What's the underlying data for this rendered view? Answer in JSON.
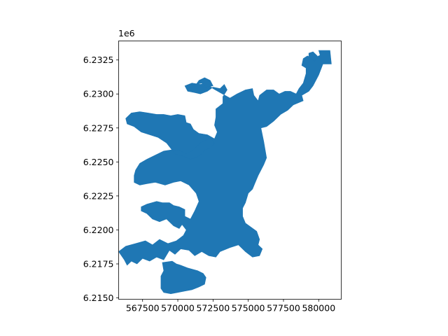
{
  "chart_data": {
    "type": "map",
    "offset_text": "1e6",
    "xlim": [
      565800,
      581600
    ],
    "ylim": [
      6214900,
      6233900
    ],
    "x_ticks": [
      567500,
      570000,
      572500,
      575000,
      577500,
      580000
    ],
    "x_tick_labels": [
      "567500",
      "570000",
      "572500",
      "575000",
      "577500",
      "580000"
    ],
    "y_ticks": [
      6215000,
      6217500,
      6220000,
      6222500,
      6225000,
      6227500,
      6230000,
      6232500
    ],
    "y_tick_labels": [
      "6.2150",
      "6.2175",
      "6.2200",
      "6.2225",
      "6.2250",
      "6.2275",
      "6.2300",
      "6.2325"
    ],
    "fill_color": "#1f77b4",
    "grid": false,
    "polygons": [
      {
        "name": "main-landmass",
        "coords": [
          [
            579200,
            6232800
          ],
          [
            579600,
            6232600
          ],
          [
            580100,
            6232850
          ],
          [
            580000,
            6233200
          ],
          [
            580800,
            6233200
          ],
          [
            580900,
            6232200
          ],
          [
            580300,
            6232200
          ],
          [
            580000,
            6231400
          ],
          [
            579600,
            6230600
          ],
          [
            579300,
            6230200
          ],
          [
            578800,
            6229900
          ],
          [
            578900,
            6229500
          ],
          [
            578200,
            6229200
          ],
          [
            577800,
            6228800
          ],
          [
            577300,
            6228500
          ],
          [
            576800,
            6228000
          ],
          [
            576300,
            6227600
          ],
          [
            575900,
            6227500
          ],
          [
            576000,
            6227000
          ],
          [
            576100,
            6226500
          ],
          [
            576200,
            6225900
          ],
          [
            576300,
            6225300
          ],
          [
            576100,
            6224800
          ],
          [
            575900,
            6224400
          ],
          [
            575700,
            6224000
          ],
          [
            575500,
            6223500
          ],
          [
            575300,
            6223000
          ],
          [
            575000,
            6222700
          ],
          [
            574800,
            6222000
          ],
          [
            574600,
            6221600
          ],
          [
            574600,
            6221000
          ],
          [
            574800,
            6220500
          ],
          [
            575200,
            6220200
          ],
          [
            575600,
            6219900
          ],
          [
            575800,
            6219300
          ],
          [
            575700,
            6218900
          ],
          [
            576000,
            6218600
          ],
          [
            575800,
            6218100
          ],
          [
            575300,
            6218000
          ],
          [
            574800,
            6218400
          ],
          [
            574300,
            6218900
          ],
          [
            573700,
            6218700
          ],
          [
            573000,
            6218400
          ],
          [
            572700,
            6218000
          ],
          [
            572200,
            6218100
          ],
          [
            571700,
            6218400
          ],
          [
            571200,
            6218100
          ],
          [
            570800,
            6218500
          ],
          [
            570200,
            6218600
          ],
          [
            569800,
            6218200
          ],
          [
            569400,
            6218500
          ],
          [
            569000,
            6217800
          ],
          [
            568500,
            6218000
          ],
          [
            568000,
            6217700
          ],
          [
            567500,
            6217900
          ],
          [
            567100,
            6217500
          ],
          [
            566700,
            6217700
          ],
          [
            566400,
            6217400
          ],
          [
            566200,
            6217800
          ],
          [
            565800,
            6218400
          ],
          [
            566300,
            6218800
          ],
          [
            567000,
            6219000
          ],
          [
            567700,
            6219200
          ],
          [
            568200,
            6218900
          ],
          [
            568700,
            6219300
          ],
          [
            569300,
            6219000
          ],
          [
            569900,
            6219200
          ],
          [
            570400,
            6219600
          ],
          [
            570600,
            6220000
          ],
          [
            570300,
            6220400
          ],
          [
            570100,
            6220100
          ],
          [
            569700,
            6220300
          ],
          [
            569200,
            6220800
          ],
          [
            568700,
            6220600
          ],
          [
            568200,
            6220800
          ],
          [
            567800,
            6221200
          ],
          [
            567400,
            6221400
          ],
          [
            567400,
            6221700
          ],
          [
            567800,
            6221900
          ],
          [
            568500,
            6222100
          ],
          [
            568900,
            6222000
          ],
          [
            569400,
            6222000
          ],
          [
            569700,
            6221800
          ],
          [
            570100,
            6221700
          ],
          [
            570500,
            6221500
          ],
          [
            570500,
            6221000
          ],
          [
            570900,
            6220800
          ],
          [
            571200,
            6221400
          ],
          [
            571500,
            6222100
          ],
          [
            571300,
            6222700
          ],
          [
            570800,
            6223300
          ],
          [
            570200,
            6223600
          ],
          [
            569700,
            6223500
          ],
          [
            569100,
            6223300
          ],
          [
            568400,
            6223500
          ],
          [
            567800,
            6223400
          ],
          [
            567300,
            6223300
          ],
          [
            566900,
            6223500
          ],
          [
            566900,
            6224000
          ],
          [
            567000,
            6224400
          ],
          [
            567300,
            6224900
          ],
          [
            567800,
            6225200
          ],
          [
            568400,
            6225500
          ],
          [
            569000,
            6225800
          ],
          [
            569600,
            6225900
          ],
          [
            570200,
            6225800
          ],
          [
            570600,
            6225600
          ],
          [
            571000,
            6225800
          ],
          [
            571300,
            6226100
          ],
          [
            571600,
            6226400
          ],
          [
            572000,
            6226600
          ],
          [
            572300,
            6226800
          ],
          [
            572600,
            6226400
          ],
          [
            572300,
            6226000
          ],
          [
            571900,
            6225900
          ],
          [
            571800,
            6225700
          ],
          [
            571300,
            6225300
          ],
          [
            570900,
            6225200
          ],
          [
            570400,
            6225400
          ],
          [
            569800,
            6225600
          ],
          [
            569200,
            6226400
          ],
          [
            568600,
            6226800
          ],
          [
            568000,
            6227000
          ],
          [
            567400,
            6227200
          ],
          [
            566900,
            6227600
          ],
          [
            566400,
            6227800
          ],
          [
            566300,
            6228200
          ],
          [
            566700,
            6228600
          ],
          [
            567300,
            6228700
          ],
          [
            567900,
            6228600
          ],
          [
            568500,
            6228500
          ],
          [
            569000,
            6228500
          ],
          [
            569500,
            6228400
          ],
          [
            570000,
            6228500
          ],
          [
            570500,
            6228400
          ],
          [
            570600,
            6227900
          ],
          [
            570900,
            6227800
          ],
          [
            571100,
            6227400
          ],
          [
            571500,
            6227100
          ],
          [
            572100,
            6227000
          ],
          [
            572600,
            6226700
          ],
          [
            572800,
            6227200
          ],
          [
            572600,
            6227700
          ],
          [
            572700,
            6228300
          ],
          [
            572700,
            6228900
          ],
          [
            573200,
            6229300
          ],
          [
            573200,
            6229800
          ],
          [
            573500,
            6230300
          ],
          [
            573300,
            6230700
          ],
          [
            573000,
            6230400
          ],
          [
            572500,
            6230500
          ],
          [
            572100,
            6230200
          ],
          [
            571600,
            6230000
          ],
          [
            571200,
            6230100
          ],
          [
            570700,
            6230200
          ],
          [
            570500,
            6230600
          ],
          [
            571000,
            6230800
          ],
          [
            571600,
            6230700
          ],
          [
            572000,
            6230800
          ],
          [
            572500,
            6230400
          ],
          [
            573000,
            6230100
          ],
          [
            573700,
            6229700
          ],
          [
            574200,
            6230000
          ],
          [
            574800,
            6230300
          ],
          [
            575300,
            6230400
          ],
          [
            575400,
            6229900
          ],
          [
            575700,
            6229500
          ],
          [
            575800,
            6229900
          ],
          [
            576300,
            6230300
          ],
          [
            576800,
            6230300
          ],
          [
            577200,
            6230000
          ],
          [
            577600,
            6230200
          ],
          [
            578000,
            6230200
          ],
          [
            578400,
            6230000
          ],
          [
            578600,
            6230400
          ],
          [
            578900,
            6230800
          ],
          [
            579100,
            6231500
          ],
          [
            579100,
            6231900
          ],
          [
            578800,
            6232100
          ],
          [
            578900,
            6232600
          ]
        ]
      },
      {
        "name": "south-island",
        "coords": [
          [
            568900,
            6217600
          ],
          [
            569600,
            6217700
          ],
          [
            569900,
            6217500
          ],
          [
            570200,
            6217400
          ],
          [
            570700,
            6217200
          ],
          [
            571400,
            6217000
          ],
          [
            571800,
            6216800
          ],
          [
            572000,
            6216500
          ],
          [
            571900,
            6216000
          ],
          [
            571500,
            6215800
          ],
          [
            571000,
            6215600
          ],
          [
            570500,
            6215500
          ],
          [
            570000,
            6215400
          ],
          [
            569500,
            6215300
          ],
          [
            569000,
            6215400
          ],
          [
            568800,
            6215700
          ],
          [
            568800,
            6216100
          ],
          [
            568800,
            6216600
          ],
          [
            569000,
            6217000
          ]
        ]
      },
      {
        "name": "north-islet",
        "coords": [
          [
            571300,
            6230700
          ],
          [
            571700,
            6230800
          ],
          [
            572000,
            6230500
          ],
          [
            572500,
            6230600
          ],
          [
            572300,
            6231000
          ],
          [
            571900,
            6231200
          ],
          [
            571500,
            6231000
          ]
        ]
      },
      {
        "name": "northeast-tip",
        "coords": [
          [
            579300,
            6232700
          ],
          [
            579700,
            6232400
          ],
          [
            579900,
            6232800
          ],
          [
            579600,
            6233100
          ],
          [
            579300,
            6233000
          ]
        ]
      }
    ]
  }
}
